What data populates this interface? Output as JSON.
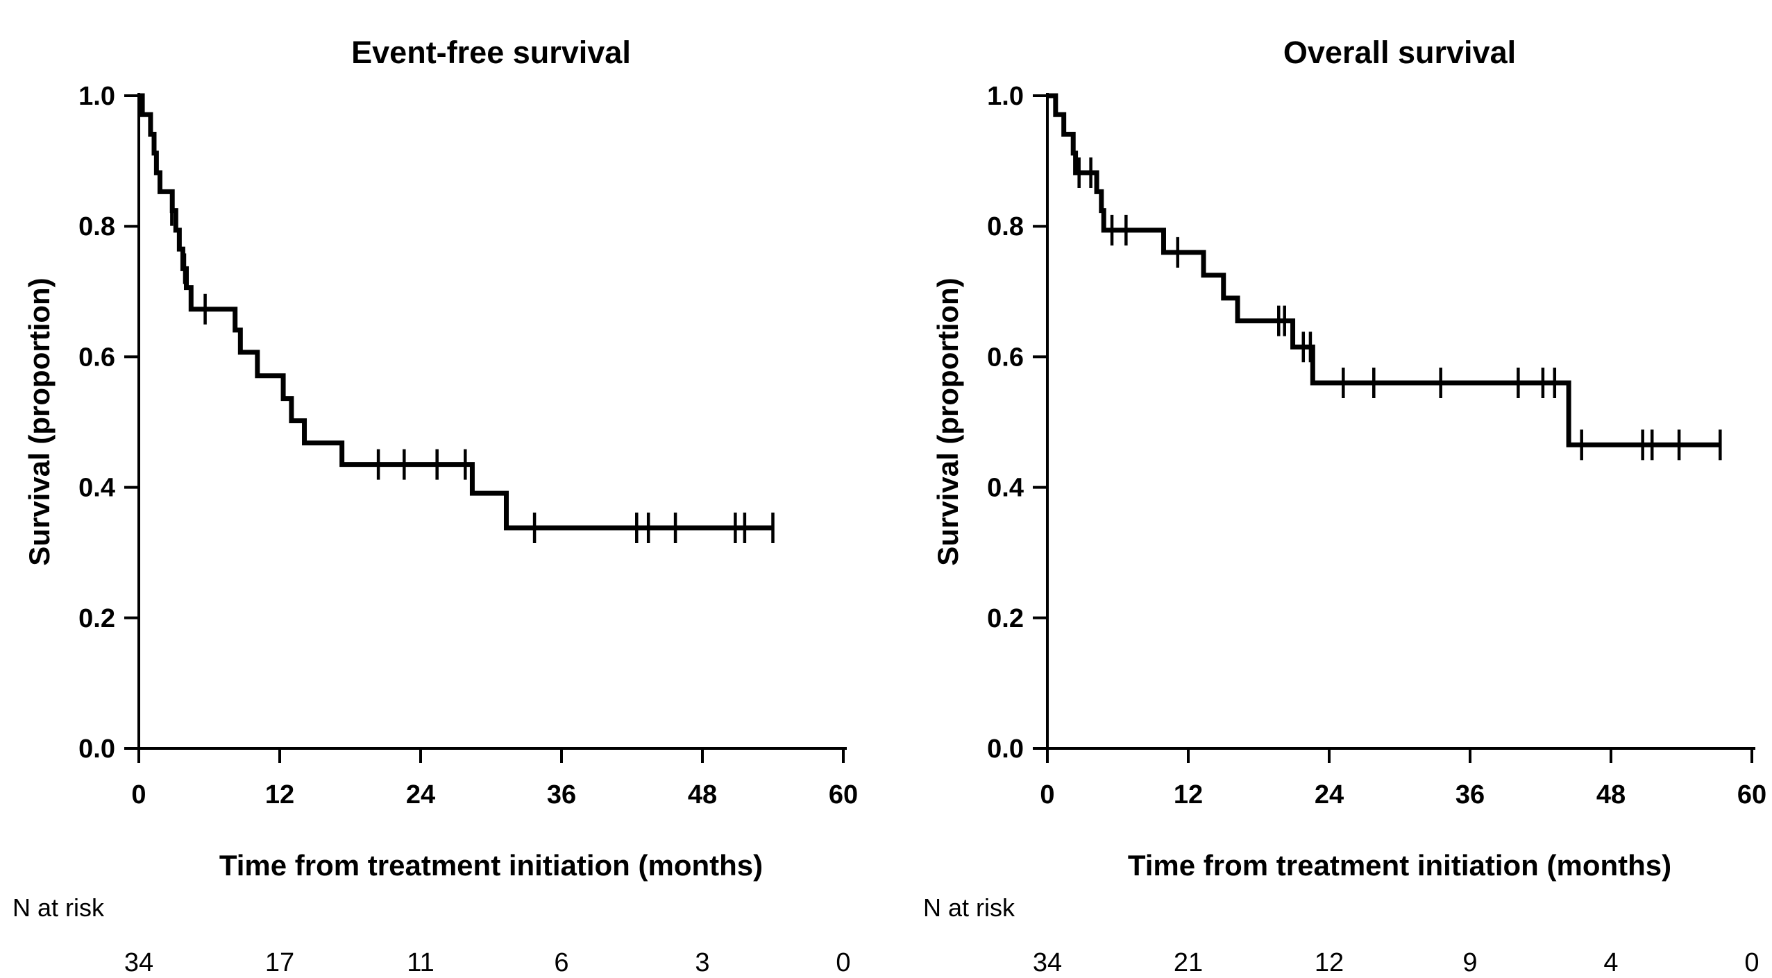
{
  "figure": {
    "background_color": "#ffffff",
    "curve_color": "#000000",
    "text_color": "#000000",
    "n_at_risk_label": "N at risk"
  },
  "chart_data": [
    {
      "type": "line",
      "subtype": "kaplan-meier-step",
      "title": "Event-free survival",
      "xlabel": "Time from treatment initiation (months)",
      "ylabel": "Survival (proportion)",
      "xlim": [
        0,
        60
      ],
      "ylim": [
        0.0,
        1.0
      ],
      "xticks": [
        0,
        12,
        24,
        36,
        48,
        60
      ],
      "yticks": [
        0.0,
        0.2,
        0.4,
        0.6,
        0.8,
        1.0
      ],
      "grid": false,
      "legend": "none",
      "steps": [
        [
          0,
          1.0
        ],
        [
          0.3,
          0.971
        ],
        [
          1.0,
          0.941
        ],
        [
          1.3,
          0.912
        ],
        [
          1.5,
          0.882
        ],
        [
          1.8,
          0.853
        ],
        [
          2.85,
          0.824
        ],
        [
          3.15,
          0.794
        ],
        [
          3.45,
          0.765
        ],
        [
          3.75,
          0.735
        ],
        [
          4.05,
          0.706
        ],
        [
          4.45,
          0.673
        ],
        [
          8.2,
          0.641
        ],
        [
          8.65,
          0.607
        ],
        [
          10.1,
          0.571
        ],
        [
          12.3,
          0.536
        ],
        [
          13.0,
          0.502
        ],
        [
          14.1,
          0.468
        ],
        [
          17.3,
          0.435
        ],
        [
          28.4,
          0.391
        ],
        [
          31.3,
          0.338
        ]
      ],
      "end_time": 54.0,
      "censor_marks": [
        [
          2.8,
          0.824
        ],
        [
          3.9,
          0.735
        ],
        [
          5.65,
          0.673
        ],
        [
          20.4,
          0.435
        ],
        [
          22.6,
          0.435
        ],
        [
          25.4,
          0.435
        ],
        [
          27.8,
          0.435
        ],
        [
          33.7,
          0.338
        ],
        [
          42.4,
          0.338
        ],
        [
          43.4,
          0.338
        ],
        [
          45.7,
          0.338
        ],
        [
          50.8,
          0.338
        ],
        [
          51.6,
          0.338
        ],
        [
          54.0,
          0.338
        ]
      ],
      "n_at_risk": [
        34,
        17,
        11,
        6,
        3,
        0
      ]
    },
    {
      "type": "line",
      "subtype": "kaplan-meier-step",
      "title": "Overall survival",
      "xlabel": "Time from treatment initiation (months)",
      "ylabel": "Survival (proportion)",
      "xlim": [
        0,
        60
      ],
      "ylim": [
        0.0,
        1.0
      ],
      "xticks": [
        0,
        12,
        24,
        36,
        48,
        60
      ],
      "yticks": [
        0.0,
        0.2,
        0.4,
        0.6,
        0.8,
        1.0
      ],
      "grid": false,
      "legend": "none",
      "steps": [
        [
          0,
          1.0
        ],
        [
          0.7,
          0.971
        ],
        [
          1.4,
          0.941
        ],
        [
          2.2,
          0.912
        ],
        [
          2.4,
          0.882
        ],
        [
          4.2,
          0.853
        ],
        [
          4.6,
          0.824
        ],
        [
          4.8,
          0.794
        ],
        [
          9.9,
          0.76
        ],
        [
          13.3,
          0.725
        ],
        [
          15.0,
          0.69
        ],
        [
          16.2,
          0.655
        ],
        [
          20.9,
          0.615
        ],
        [
          22.6,
          0.56
        ],
        [
          44.4,
          0.465
        ]
      ],
      "end_time": 57.3,
      "censor_marks": [
        [
          2.7,
          0.882
        ],
        [
          3.7,
          0.882
        ],
        [
          5.5,
          0.794
        ],
        [
          6.7,
          0.794
        ],
        [
          11.1,
          0.76
        ],
        [
          19.7,
          0.655
        ],
        [
          20.2,
          0.655
        ],
        [
          21.8,
          0.615
        ],
        [
          22.4,
          0.615
        ],
        [
          25.2,
          0.56
        ],
        [
          27.8,
          0.56
        ],
        [
          33.5,
          0.56
        ],
        [
          40.1,
          0.56
        ],
        [
          42.2,
          0.56
        ],
        [
          43.2,
          0.56
        ],
        [
          45.5,
          0.465
        ],
        [
          50.7,
          0.465
        ],
        [
          51.5,
          0.465
        ],
        [
          53.8,
          0.465
        ],
        [
          57.3,
          0.465
        ]
      ],
      "n_at_risk": [
        34,
        21,
        12,
        9,
        4,
        0
      ]
    }
  ]
}
